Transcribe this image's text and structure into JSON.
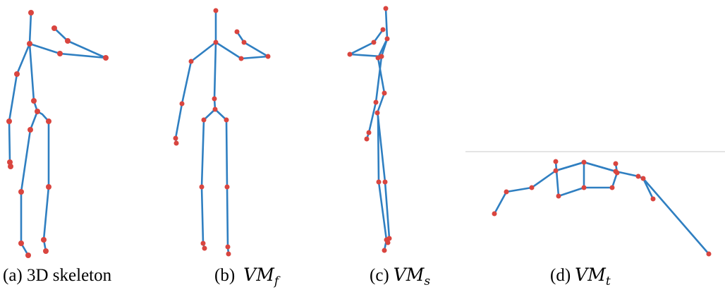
{
  "figure": {
    "panels": [
      {
        "label": "(a) 3D skeleton"
      },
      {
        "label": "(b)",
        "symbol": "VM",
        "subscript": "f"
      },
      {
        "label": "(c)",
        "symbol": "VM",
        "subscript": "s"
      },
      {
        "label": "(d)",
        "symbol": "VM",
        "subscript": "t"
      }
    ]
  }
}
